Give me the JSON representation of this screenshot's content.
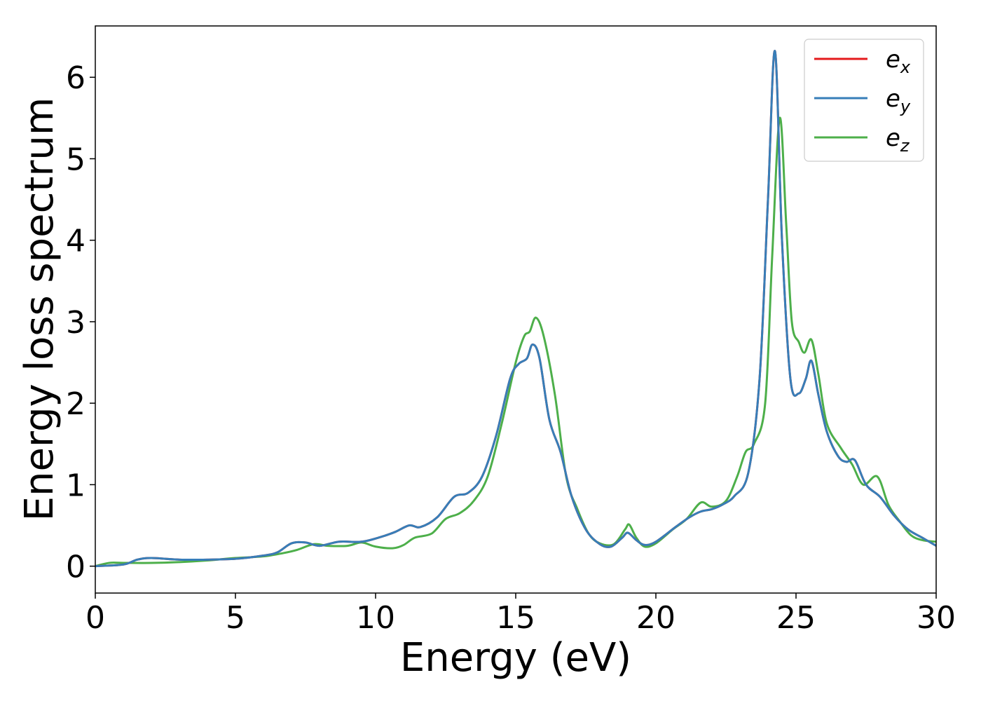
{
  "chart_data": {
    "type": "line",
    "title": "",
    "xlabel": "Energy (eV)",
    "ylabel": "Energy loss spectrum",
    "xlim": [
      0,
      30
    ],
    "ylim": [
      -0.33,
      6.63
    ],
    "xticks": [
      0,
      5,
      10,
      15,
      20,
      25,
      30
    ],
    "yticks": [
      0,
      1,
      2,
      3,
      4,
      5,
      6
    ],
    "grid": false,
    "legend_position": "top-right",
    "series": [
      {
        "name": "e_x",
        "legend_base": "e",
        "legend_sub": "x",
        "color": "#e41a1c",
        "points": [
          [
            0,
            0.0
          ],
          [
            1,
            0.02
          ],
          [
            1.5,
            0.08
          ],
          [
            2,
            0.1
          ],
          [
            3,
            0.08
          ],
          [
            4,
            0.08
          ],
          [
            5,
            0.09
          ],
          [
            6,
            0.13
          ],
          [
            6.5,
            0.17
          ],
          [
            7,
            0.28
          ],
          [
            7.5,
            0.29
          ],
          [
            8,
            0.25
          ],
          [
            8.7,
            0.3
          ],
          [
            9.5,
            0.3
          ],
          [
            10.2,
            0.36
          ],
          [
            10.7,
            0.42
          ],
          [
            11.2,
            0.5
          ],
          [
            11.6,
            0.48
          ],
          [
            12.2,
            0.6
          ],
          [
            12.8,
            0.85
          ],
          [
            13.3,
            0.9
          ],
          [
            13.8,
            1.1
          ],
          [
            14.3,
            1.6
          ],
          [
            14.8,
            2.3
          ],
          [
            15.1,
            2.48
          ],
          [
            15.4,
            2.55
          ],
          [
            15.6,
            2.72
          ],
          [
            15.85,
            2.55
          ],
          [
            16.2,
            1.8
          ],
          [
            16.6,
            1.4
          ],
          [
            17,
            0.85
          ],
          [
            17.5,
            0.45
          ],
          [
            18,
            0.27
          ],
          [
            18.4,
            0.24
          ],
          [
            18.8,
            0.35
          ],
          [
            19,
            0.41
          ],
          [
            19.3,
            0.32
          ],
          [
            19.6,
            0.26
          ],
          [
            20,
            0.3
          ],
          [
            20.7,
            0.48
          ],
          [
            21.2,
            0.6
          ],
          [
            21.6,
            0.67
          ],
          [
            22,
            0.7
          ],
          [
            22.4,
            0.76
          ],
          [
            22.8,
            0.86
          ],
          [
            23.3,
            1.15
          ],
          [
            23.7,
            2.3
          ],
          [
            24,
            4.5
          ],
          [
            24.25,
            6.32
          ],
          [
            24.5,
            4.0
          ],
          [
            24.8,
            2.3
          ],
          [
            25.1,
            2.12
          ],
          [
            25.35,
            2.3
          ],
          [
            25.55,
            2.52
          ],
          [
            25.8,
            2.1
          ],
          [
            26.1,
            1.65
          ],
          [
            26.5,
            1.35
          ],
          [
            26.8,
            1.28
          ],
          [
            27.1,
            1.3
          ],
          [
            27.5,
            1.0
          ],
          [
            28,
            0.85
          ],
          [
            28.5,
            0.62
          ],
          [
            29,
            0.45
          ],
          [
            29.5,
            0.35
          ],
          [
            30,
            0.25
          ]
        ]
      },
      {
        "name": "e_y",
        "legend_base": "e",
        "legend_sub": "y",
        "color": "#377eb8",
        "points": [
          [
            0,
            0.0
          ],
          [
            1,
            0.02
          ],
          [
            1.5,
            0.08
          ],
          [
            2,
            0.1
          ],
          [
            3,
            0.08
          ],
          [
            4,
            0.08
          ],
          [
            5,
            0.09
          ],
          [
            6,
            0.13
          ],
          [
            6.5,
            0.17
          ],
          [
            7,
            0.28
          ],
          [
            7.5,
            0.29
          ],
          [
            8,
            0.25
          ],
          [
            8.7,
            0.3
          ],
          [
            9.5,
            0.3
          ],
          [
            10.2,
            0.36
          ],
          [
            10.7,
            0.42
          ],
          [
            11.2,
            0.5
          ],
          [
            11.6,
            0.48
          ],
          [
            12.2,
            0.6
          ],
          [
            12.8,
            0.85
          ],
          [
            13.3,
            0.9
          ],
          [
            13.8,
            1.1
          ],
          [
            14.3,
            1.6
          ],
          [
            14.8,
            2.3
          ],
          [
            15.1,
            2.48
          ],
          [
            15.4,
            2.55
          ],
          [
            15.6,
            2.72
          ],
          [
            15.85,
            2.55
          ],
          [
            16.2,
            1.8
          ],
          [
            16.6,
            1.4
          ],
          [
            17,
            0.85
          ],
          [
            17.5,
            0.45
          ],
          [
            18,
            0.27
          ],
          [
            18.4,
            0.24
          ],
          [
            18.8,
            0.35
          ],
          [
            19,
            0.41
          ],
          [
            19.3,
            0.32
          ],
          [
            19.6,
            0.26
          ],
          [
            20,
            0.3
          ],
          [
            20.7,
            0.48
          ],
          [
            21.2,
            0.6
          ],
          [
            21.6,
            0.67
          ],
          [
            22,
            0.7
          ],
          [
            22.4,
            0.76
          ],
          [
            22.8,
            0.86
          ],
          [
            23.3,
            1.15
          ],
          [
            23.7,
            2.3
          ],
          [
            24,
            4.5
          ],
          [
            24.25,
            6.32
          ],
          [
            24.5,
            4.0
          ],
          [
            24.8,
            2.3
          ],
          [
            25.1,
            2.12
          ],
          [
            25.35,
            2.3
          ],
          [
            25.55,
            2.52
          ],
          [
            25.8,
            2.1
          ],
          [
            26.1,
            1.65
          ],
          [
            26.5,
            1.35
          ],
          [
            26.8,
            1.28
          ],
          [
            27.1,
            1.3
          ],
          [
            27.5,
            1.0
          ],
          [
            28,
            0.85
          ],
          [
            28.5,
            0.62
          ],
          [
            29,
            0.45
          ],
          [
            29.5,
            0.35
          ],
          [
            30,
            0.25
          ]
        ]
      },
      {
        "name": "e_z",
        "legend_base": "e",
        "legend_sub": "z",
        "color": "#4daf4a",
        "points": [
          [
            0,
            0.0
          ],
          [
            0.5,
            0.04
          ],
          [
            1,
            0.04
          ],
          [
            2,
            0.04
          ],
          [
            3,
            0.05
          ],
          [
            4,
            0.07
          ],
          [
            5,
            0.1
          ],
          [
            6,
            0.12
          ],
          [
            6.7,
            0.16
          ],
          [
            7.2,
            0.2
          ],
          [
            7.8,
            0.27
          ],
          [
            8.3,
            0.25
          ],
          [
            9,
            0.25
          ],
          [
            9.5,
            0.29
          ],
          [
            10,
            0.24
          ],
          [
            10.6,
            0.22
          ],
          [
            11,
            0.26
          ],
          [
            11.4,
            0.35
          ],
          [
            12,
            0.4
          ],
          [
            12.5,
            0.58
          ],
          [
            13,
            0.65
          ],
          [
            13.5,
            0.8
          ],
          [
            14,
            1.1
          ],
          [
            14.5,
            1.75
          ],
          [
            15,
            2.5
          ],
          [
            15.3,
            2.82
          ],
          [
            15.5,
            2.88
          ],
          [
            15.72,
            3.05
          ],
          [
            16,
            2.82
          ],
          [
            16.4,
            2.1
          ],
          [
            16.8,
            1.1
          ],
          [
            17.2,
            0.7
          ],
          [
            17.6,
            0.4
          ],
          [
            18,
            0.28
          ],
          [
            18.5,
            0.27
          ],
          [
            18.9,
            0.45
          ],
          [
            19.05,
            0.51
          ],
          [
            19.3,
            0.35
          ],
          [
            19.6,
            0.24
          ],
          [
            20,
            0.28
          ],
          [
            20.6,
            0.45
          ],
          [
            21.1,
            0.58
          ],
          [
            21.6,
            0.78
          ],
          [
            22,
            0.73
          ],
          [
            22.5,
            0.8
          ],
          [
            22.9,
            1.1
          ],
          [
            23.2,
            1.4
          ],
          [
            23.5,
            1.5
          ],
          [
            23.9,
            2.0
          ],
          [
            24.15,
            3.8
          ],
          [
            24.42,
            5.5
          ],
          [
            24.65,
            4.2
          ],
          [
            24.85,
            3.0
          ],
          [
            25.1,
            2.75
          ],
          [
            25.3,
            2.62
          ],
          [
            25.55,
            2.78
          ],
          [
            25.8,
            2.35
          ],
          [
            26.1,
            1.75
          ],
          [
            26.6,
            1.45
          ],
          [
            27,
            1.25
          ],
          [
            27.4,
            1.0
          ],
          [
            27.9,
            1.1
          ],
          [
            28.3,
            0.75
          ],
          [
            28.7,
            0.55
          ],
          [
            29.1,
            0.38
          ],
          [
            29.5,
            0.32
          ],
          [
            30,
            0.3
          ]
        ]
      }
    ]
  }
}
